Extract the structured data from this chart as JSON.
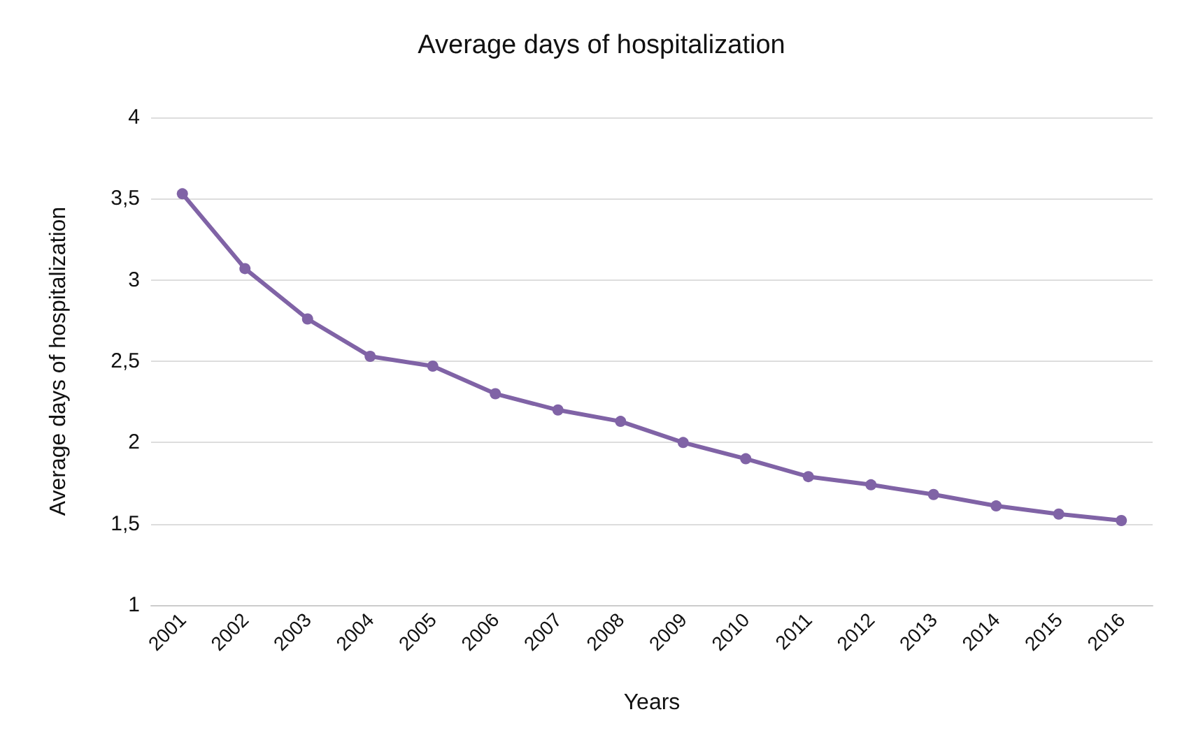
{
  "chart_data": {
    "type": "line",
    "title": "Average days of hospitalization",
    "xlabel": "Years",
    "ylabel": "Average days of hospitalization",
    "categories": [
      "2001",
      "2002",
      "2003",
      "2004",
      "2005",
      "2006",
      "2007",
      "2008",
      "2009",
      "2010",
      "2011",
      "2012",
      "2013",
      "2014",
      "2015",
      "2016"
    ],
    "series": [
      {
        "color": "#8063a6",
        "values": [
          3.53,
          3.07,
          2.76,
          2.53,
          2.47,
          2.3,
          2.2,
          2.13,
          2.0,
          1.9,
          1.79,
          1.74,
          1.68,
          1.61,
          1.56,
          1.52
        ]
      }
    ],
    "ylim": [
      1,
      4
    ],
    "yticks": [
      1,
      {
        "value": 1.5,
        "label": "1,5"
      },
      2,
      {
        "value": 2.5,
        "label": "2,5"
      },
      3,
      {
        "value": 3.5,
        "label": "3,5"
      },
      4
    ],
    "grid": "y",
    "marker": "circle",
    "line_style": "solid"
  }
}
